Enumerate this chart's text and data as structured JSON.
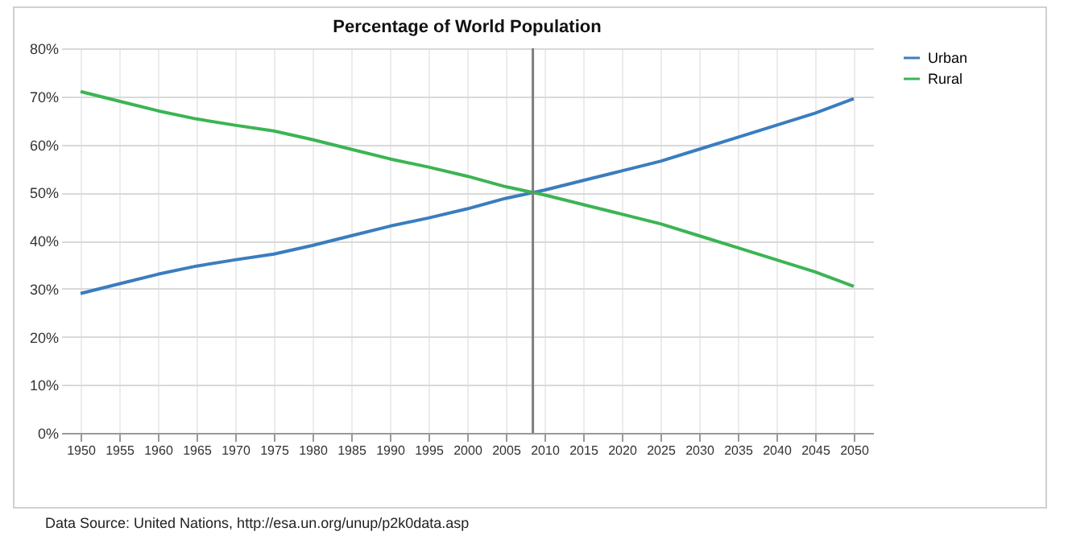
{
  "chart_data": {
    "type": "line",
    "title": "Percentage of World Population",
    "x": [
      1950,
      1955,
      1960,
      1965,
      1970,
      1975,
      1980,
      1985,
      1990,
      1995,
      2000,
      2005,
      2010,
      2015,
      2020,
      2025,
      2030,
      2035,
      2040,
      2045,
      2050
    ],
    "series": [
      {
        "name": "Urban",
        "color": "#3a7dbf",
        "values": [
          29,
          31,
          33,
          34.7,
          36,
          37.2,
          39,
          41,
          43,
          44.7,
          46.6,
          48.8,
          50.5,
          52.5,
          54.5,
          56.5,
          59,
          61.5,
          64,
          66.5,
          69.5
        ]
      },
      {
        "name": "Rural",
        "color": "#3cb454",
        "values": [
          71,
          69,
          67,
          65.3,
          64,
          62.8,
          61,
          59,
          57,
          55.3,
          53.4,
          51.2,
          49.5,
          47.5,
          45.5,
          43.5,
          41,
          38.5,
          36,
          33.5,
          30.5
        ]
      }
    ],
    "xlim": [
      1947.5,
      2052.5
    ],
    "xticks": [
      1950,
      1955,
      1960,
      1965,
      1970,
      1975,
      1980,
      1985,
      1990,
      1995,
      2000,
      2005,
      2010,
      2015,
      2020,
      2025,
      2030,
      2035,
      2040,
      2045,
      2050
    ],
    "ylim": [
      0,
      80
    ],
    "yticks": [
      {
        "value": 0,
        "label": "0%"
      },
      {
        "value": 10,
        "label": "10%"
      },
      {
        "value": 20,
        "label": "20%"
      },
      {
        "value": 30,
        "label": "30%"
      },
      {
        "value": 40,
        "label": "40%"
      },
      {
        "value": 50,
        "label": "50%"
      },
      {
        "value": 60,
        "label": "60%"
      },
      {
        "value": 70,
        "label": "70%"
      },
      {
        "value": 80,
        "label": "80%"
      }
    ],
    "ref_lines": [
      {
        "axis": "x",
        "value": 2008.5,
        "color": "#7f7f7f"
      }
    ],
    "grid": true,
    "legend": "right",
    "marker": "none",
    "line_style": "solid",
    "annotations": [
      "Data Source: United Nations, http://esa.un.org/unup/p2k0data.asp"
    ]
  }
}
